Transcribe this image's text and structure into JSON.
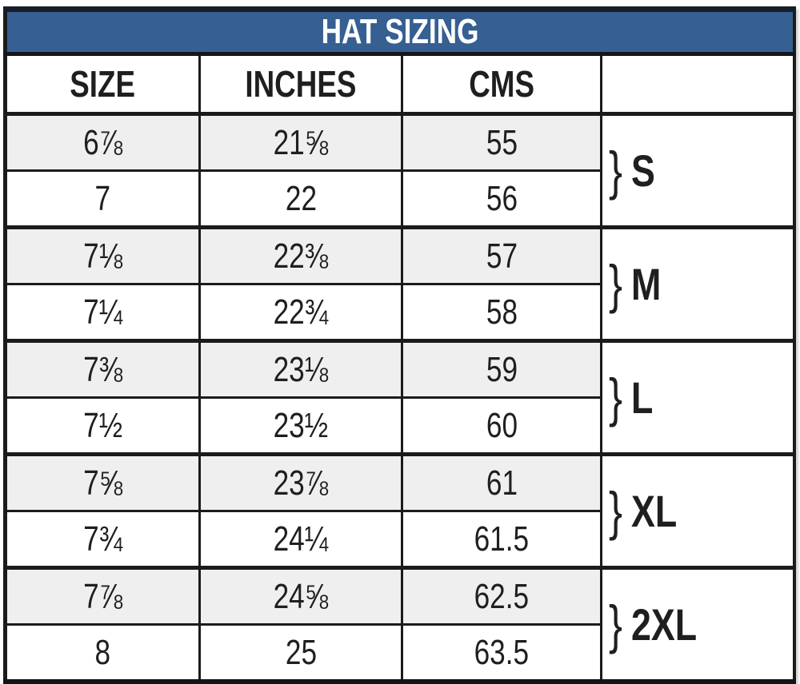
{
  "title": "HAT SIZING",
  "brace_char": "}",
  "columns": {
    "size": "SIZE",
    "inches": "INCHES",
    "cms": "CMS",
    "group": ""
  },
  "groups": [
    {
      "label": "S",
      "rows": [
        {
          "size": "6⅞",
          "inches": "21⅝",
          "cms": "55"
        },
        {
          "size": "7",
          "inches": "22",
          "cms": "56"
        }
      ]
    },
    {
      "label": "M",
      "rows": [
        {
          "size": "7⅛",
          "inches": "22⅜",
          "cms": "57"
        },
        {
          "size": "7¼",
          "inches": "22¾",
          "cms": "58"
        }
      ]
    },
    {
      "label": "L",
      "rows": [
        {
          "size": "7⅜",
          "inches": "23⅛",
          "cms": "59"
        },
        {
          "size": "7½",
          "inches": "23½",
          "cms": "60"
        }
      ]
    },
    {
      "label": "XL",
      "rows": [
        {
          "size": "7⅝",
          "inches": "23⅞",
          "cms": "61"
        },
        {
          "size": "7¾",
          "inches": "24¼",
          "cms": "61.5"
        }
      ]
    },
    {
      "label": "2XL",
      "rows": [
        {
          "size": "7⅞",
          "inches": "24⅝",
          "cms": "62.5"
        },
        {
          "size": "8",
          "inches": "25",
          "cms": "63.5"
        }
      ]
    }
  ],
  "chart_data": {
    "type": "table",
    "title": "HAT SIZING",
    "columns": [
      "SIZE",
      "INCHES",
      "CMS",
      ""
    ],
    "rows": [
      [
        "6⅞",
        "21⅝",
        "55",
        "S"
      ],
      [
        "7",
        "22",
        "56",
        "S"
      ],
      [
        "7⅛",
        "22⅜",
        "57",
        "M"
      ],
      [
        "7¼",
        "22¾",
        "58",
        "M"
      ],
      [
        "7⅜",
        "23⅛",
        "59",
        "L"
      ],
      [
        "7½",
        "23½",
        "60",
        "L"
      ],
      [
        "7⅝",
        "23⅞",
        "61",
        "XL"
      ],
      [
        "7¾",
        "24¼",
        "61.5",
        "XL"
      ],
      [
        "7⅞",
        "24⅝",
        "62.5",
        "2XL"
      ],
      [
        "8",
        "25",
        "63.5",
        "2XL"
      ]
    ]
  },
  "colors": {
    "header_bg": "#365F92",
    "header_text": "#FFFFFF",
    "alt_row_bg": "#EFEFEF",
    "row_bg": "#FFFFFF",
    "border": "#1B1B1B",
    "text": "#1F1F1F"
  }
}
